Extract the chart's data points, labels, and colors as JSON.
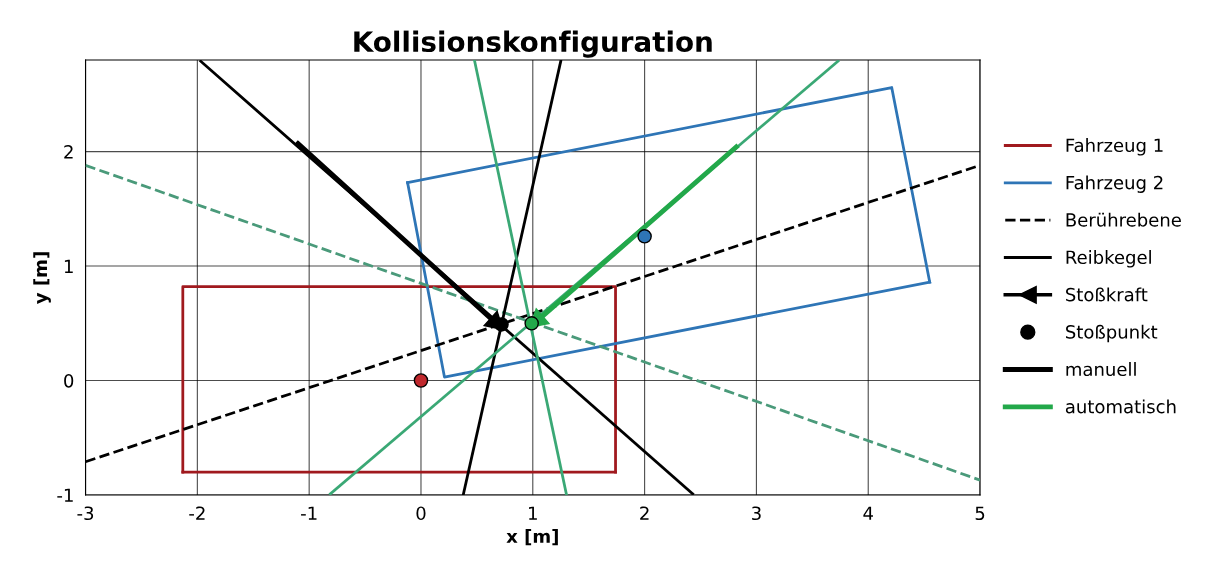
{
  "chart_data": {
    "type": "line",
    "title": "Kollisionskonfiguration",
    "xlabel": "x [m]",
    "ylabel": "y [m]",
    "xlim": [
      -3,
      5
    ],
    "ylim": [
      -1,
      2.8
    ],
    "xticks": [
      -3,
      -2,
      -1,
      0,
      1,
      2,
      3,
      4,
      5
    ],
    "yticks": [
      -1,
      0,
      1,
      2
    ],
    "grid": true,
    "legend": "right",
    "series": [
      {
        "name": "Fahrzeug 1",
        "color": "#a0191e",
        "x": [
          -2.13,
          -2.13,
          1.74,
          1.74
        ],
        "values": [
          -0.8,
          0.82,
          0.82,
          -0.8
        ]
      },
      {
        "color": "#a0191e",
        "x": [
          -2.13,
          1.74
        ],
        "values": [
          -0.8,
          -0.8
        ]
      },
      {
        "name": "Fahrzeug 2",
        "color": "#2e75b6",
        "x": [
          -0.12,
          4.21,
          4.55
        ],
        "values": [
          1.73,
          2.56,
          0.86
        ]
      },
      {
        "color": "#2e75b6",
        "x": [
          -0.12,
          0.21,
          4.55
        ],
        "values": [
          1.73,
          0.03,
          0.86
        ]
      },
      {
        "type": "scatter",
        "color": "#c0282d",
        "x": [
          0
        ],
        "values": [
          0
        ]
      },
      {
        "type": "scatter",
        "color": "#2e75b6",
        "x": [
          2.0
        ],
        "values": [
          1.26
        ]
      },
      {
        "name": "Berührebene",
        "line_style": "dashed",
        "color": "#000000",
        "x": [
          -3,
          5
        ],
        "values": [
          -0.71,
          1.88
        ]
      },
      {
        "line_style": "dashed",
        "color": "#4a9a7a",
        "x": [
          -3,
          5
        ],
        "values": [
          1.88,
          -0.87
        ]
      },
      {
        "name": "Reibkegel",
        "color": "#000000",
        "x": [
          -1.97,
          2.43
        ],
        "values": [
          2.79,
          -0.99
        ]
      },
      {
        "color": "#000000",
        "x": [
          0.38,
          1.25
        ],
        "values": [
          -0.99,
          2.79
        ]
      },
      {
        "color": "#3aa875",
        "x": [
          -0.81,
          3.73
        ],
        "values": [
          -0.99,
          2.79
        ]
      },
      {
        "color": "#3aa875",
        "x": [
          0.48,
          1.3
        ],
        "values": [
          2.79,
          -0.99
        ]
      },
      {
        "name": "Stoßkraft",
        "marker": "triangle",
        "color": "#000000",
        "x": [
          -1.1,
          0.66
        ],
        "values": [
          2.07,
          0.51
        ]
      },
      {
        "marker": "triangle",
        "color": "#22a84a",
        "x": [
          2.82,
          1.05
        ],
        "values": [
          2.04,
          0.53
        ]
      },
      {
        "name": "Stoßpunkt",
        "type": "scatter",
        "color": "#000000",
        "x": [
          0.72
        ],
        "values": [
          0.49
        ]
      },
      {
        "type": "scatter",
        "color": "#22a84a",
        "x": [
          0.99
        ],
        "values": [
          0.5
        ]
      }
    ],
    "annotations": [
      "manuell",
      "automatisch"
    ]
  }
}
